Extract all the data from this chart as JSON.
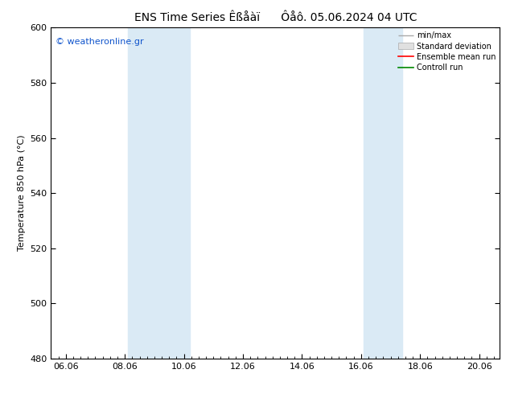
{
  "title": "ENS Time Series Êßåàï      Ôåô. 05.06.2024 04 UTC",
  "ylabel": "Temperature 850 hPa (°C)",
  "ylim": [
    480,
    600
  ],
  "yticks": [
    480,
    500,
    520,
    540,
    560,
    580,
    600
  ],
  "xtick_labels": [
    "06.06",
    "08.06",
    "10.06",
    "12.06",
    "14.06",
    "16.06",
    "18.06",
    "20.06"
  ],
  "xtick_positions": [
    0,
    2,
    4,
    6,
    8,
    10,
    12,
    14
  ],
  "xlim": [
    -0.5,
    14.7
  ],
  "blue_bands": [
    {
      "x_start": 2.1,
      "x_end": 4.2
    },
    {
      "x_start": 10.1,
      "x_end": 11.4
    }
  ],
  "band_color": "#daeaf5",
  "watermark": "© weatheronline.gr",
  "watermark_color": "#1155cc",
  "legend_entries": [
    "min/max",
    "Standard deviation",
    "Ensemble mean run",
    "Controll run"
  ],
  "legend_colors": [
    "#aaaaaa",
    "#cccccc",
    "#ff0000",
    "#008800"
  ],
  "background_color": "#ffffff",
  "title_fontsize": 10,
  "axis_label_fontsize": 8,
  "tick_fontsize": 8,
  "legend_fontsize": 7
}
